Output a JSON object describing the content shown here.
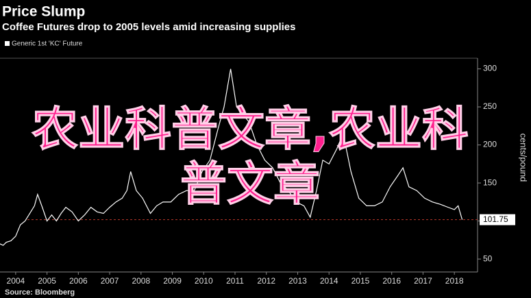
{
  "chart_data": {
    "type": "line",
    "title": "Price Slump",
    "subtitle": "Coffee Futures drop to 2005 levels amid increasing supplies",
    "y_label": "cents/pound",
    "source": "Source: Bloomberg",
    "annotation": "农业科普文章,农业科普文章",
    "last_value": 101.75,
    "series": [
      {
        "name": "Generic 1st 'KC' Future",
        "color": "#ffffff",
        "x": [
          2004.0,
          2004.1,
          2004.2,
          2004.35,
          2004.5,
          2004.65,
          2004.8,
          2004.95,
          2005.1,
          2005.2,
          2005.35,
          2005.5,
          2005.65,
          2005.8,
          2005.95,
          2006.1,
          2006.3,
          2006.5,
          2006.7,
          2006.9,
          2007.1,
          2007.3,
          2007.5,
          2007.7,
          2007.9,
          2008.05,
          2008.17,
          2008.35,
          2008.55,
          2008.8,
          2009.0,
          2009.2,
          2009.45,
          2009.7,
          2009.95,
          2010.2,
          2010.45,
          2010.7,
          2010.95,
          2011.15,
          2011.36,
          2011.55,
          2011.75,
          2011.95,
          2012.2,
          2012.45,
          2012.7,
          2012.95,
          2013.2,
          2013.45,
          2013.7,
          2013.9,
          2014.1,
          2014.3,
          2014.5,
          2014.75,
          2014.95,
          2015.2,
          2015.45,
          2015.7,
          2015.95,
          2016.2,
          2016.45,
          2016.7,
          2016.86,
          2017.05,
          2017.3,
          2017.55,
          2017.8,
          2018.05,
          2018.3,
          2018.5,
          2018.62,
          2018.75
        ],
        "values": [
          70,
          68,
          72,
          74,
          80,
          95,
          100,
          110,
          120,
          135,
          118,
          100,
          108,
          100,
          110,
          118,
          112,
          100,
          108,
          118,
          112,
          110,
          118,
          125,
          130,
          140,
          165,
          140,
          130,
          110,
          120,
          125,
          125,
          135,
          140,
          140,
          165,
          180,
          220,
          250,
          300,
          250,
          240,
          230,
          200,
          180,
          170,
          150,
          140,
          125,
          120,
          105,
          140,
          180,
          175,
          195,
          215,
          165,
          130,
          120,
          120,
          125,
          145,
          160,
          170,
          145,
          140,
          130,
          125,
          122,
          118,
          115,
          120,
          101.75
        ]
      }
    ],
    "xlim": [
      2004.0,
      2019.24
    ],
    "xticks": [
      {
        "value": 2004.5,
        "label": "2004"
      },
      {
        "value": 2005.5,
        "label": "2005"
      },
      {
        "value": 2006.5,
        "label": "2006"
      },
      {
        "value": 2007.5,
        "label": "2007"
      },
      {
        "value": 2008.5,
        "label": "2008"
      },
      {
        "value": 2009.5,
        "label": "2009"
      },
      {
        "value": 2010.5,
        "label": "2010"
      },
      {
        "value": 2011.5,
        "label": "2011"
      },
      {
        "value": 2012.5,
        "label": "2012"
      },
      {
        "value": 2013.5,
        "label": "2013"
      },
      {
        "value": 2014.5,
        "label": "2014"
      },
      {
        "value": 2015.5,
        "label": "2015"
      },
      {
        "value": 2016.5,
        "label": "2016"
      },
      {
        "value": 2017.5,
        "label": "2017"
      },
      {
        "value": 2018.5,
        "label": "2018"
      }
    ],
    "ylim": [
      33,
      314
    ],
    "yticks": [
      50,
      100,
      150,
      200,
      250,
      300
    ],
    "grid": false
  }
}
